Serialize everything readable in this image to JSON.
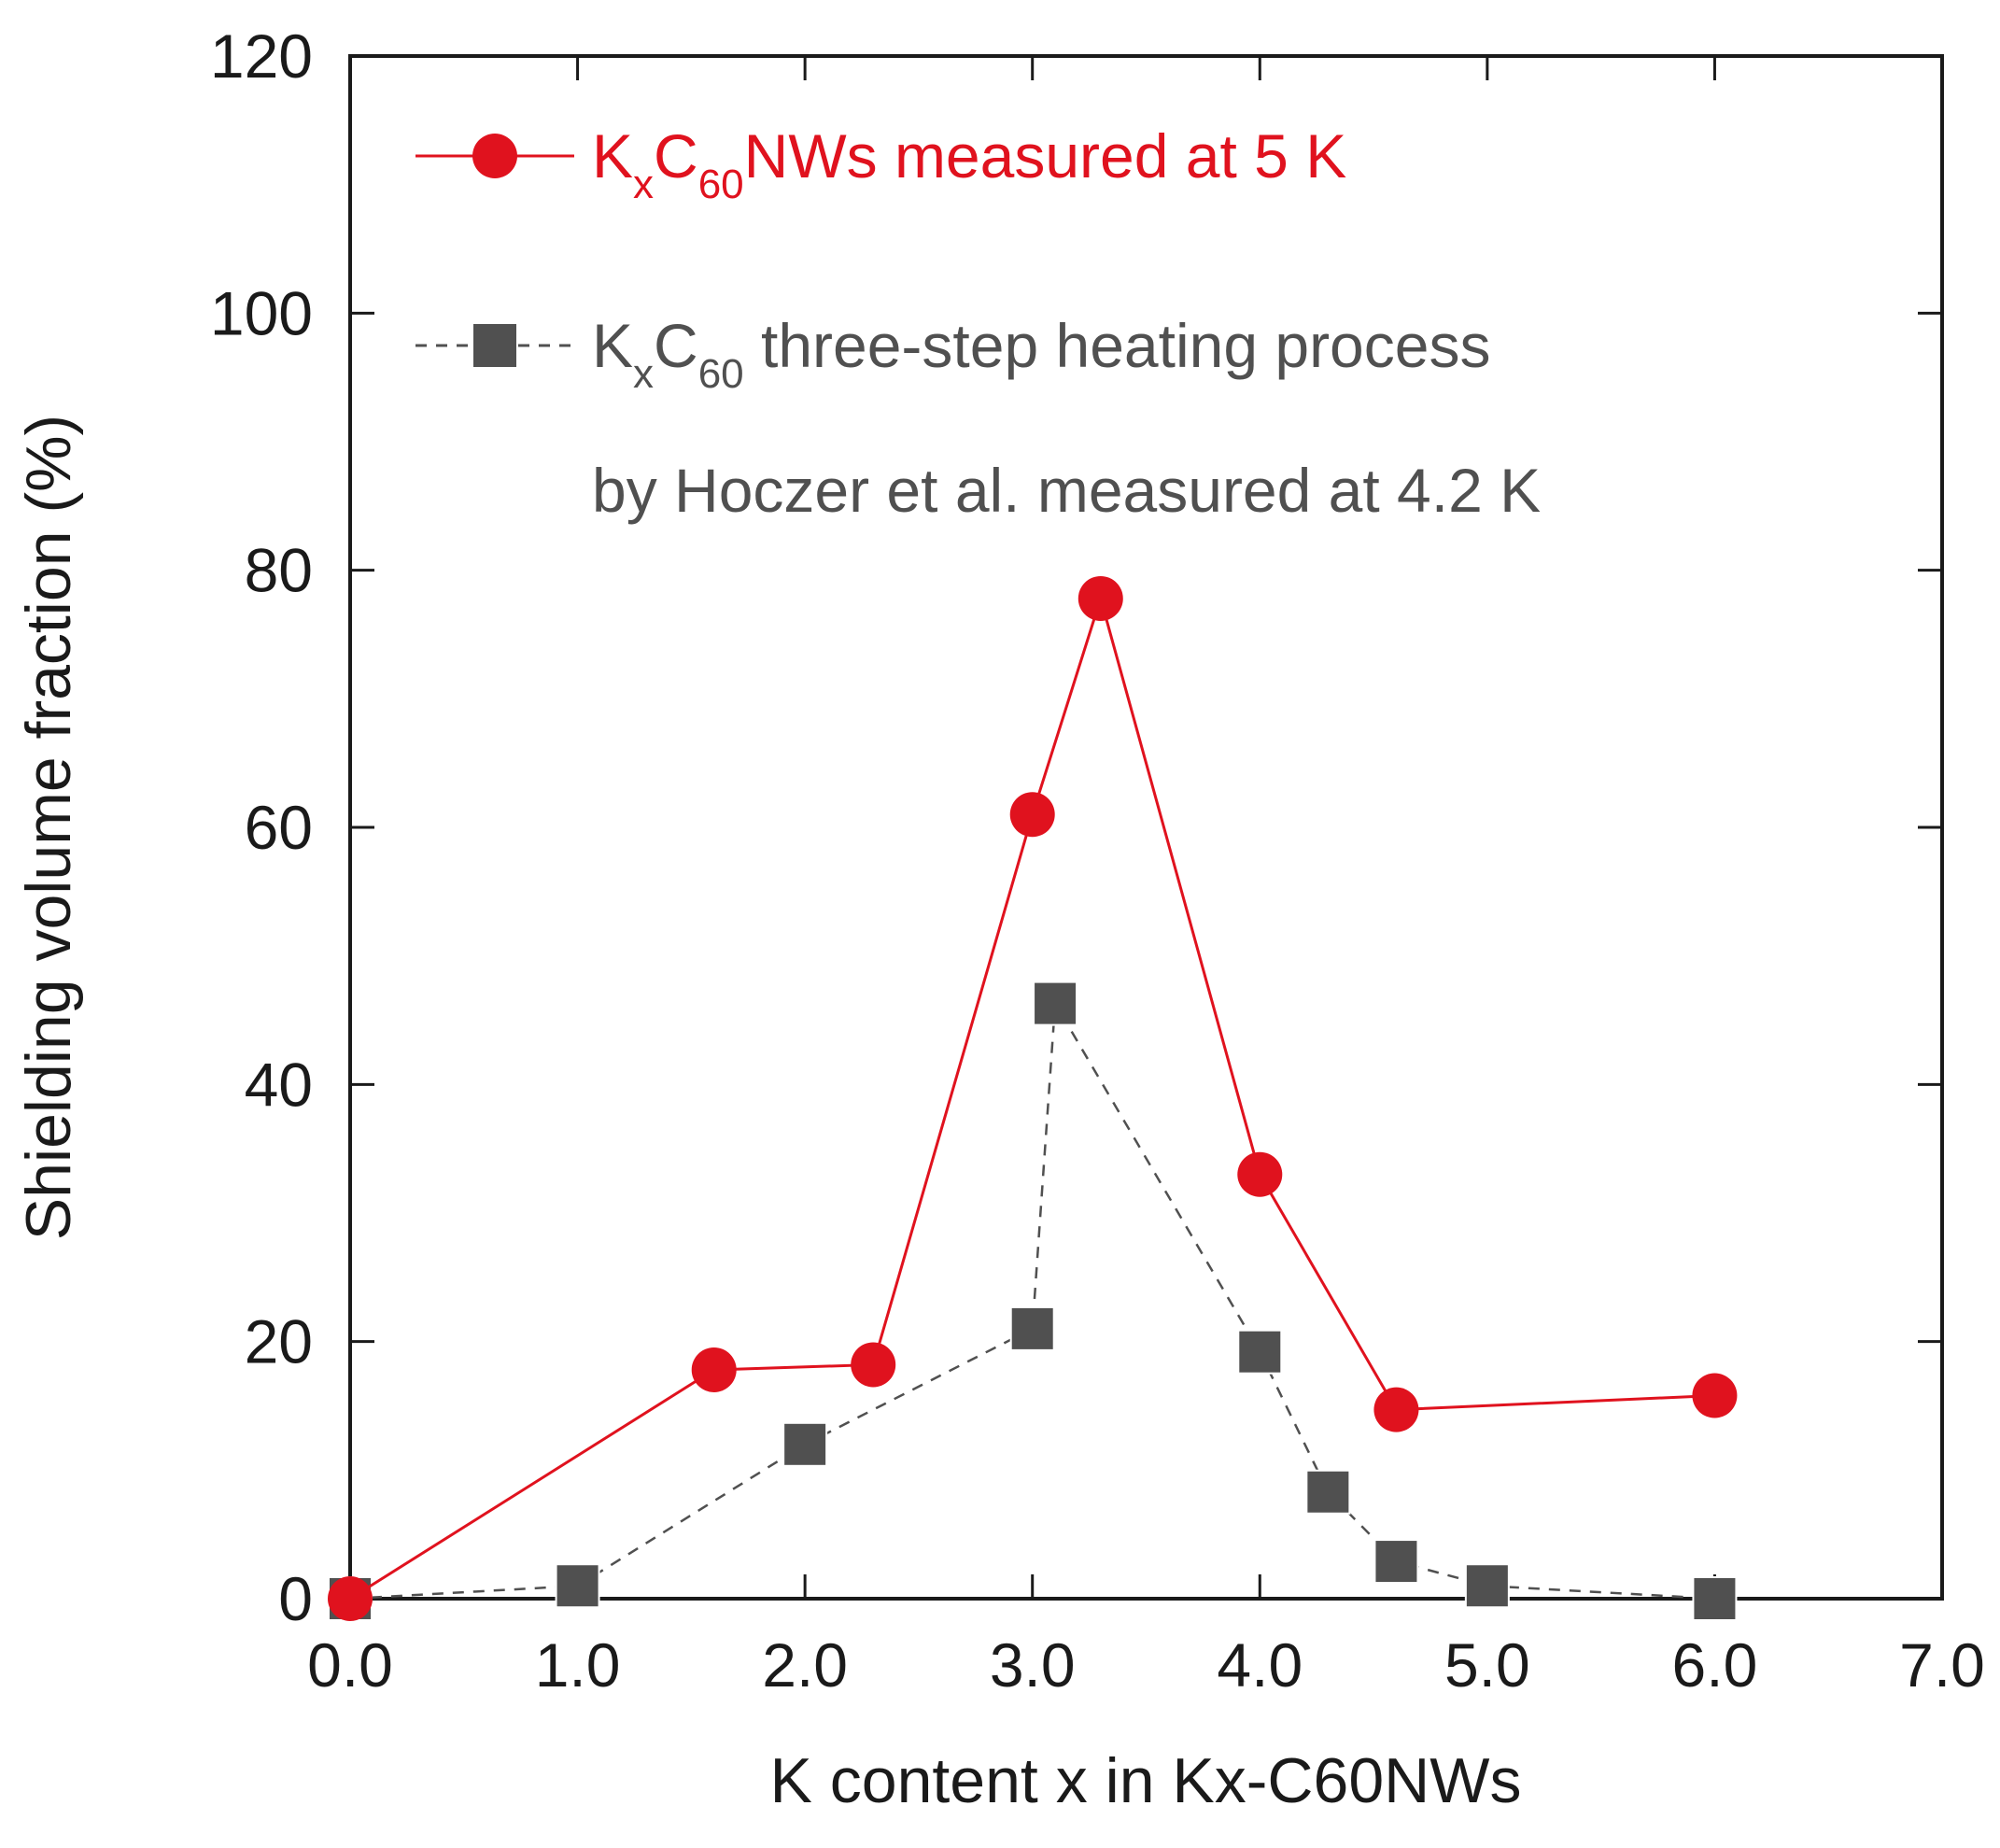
{
  "chart_data": {
    "type": "line",
    "xlabel": "K content x in Kx-C60NWs",
    "ylabel": "Shielding volume fraction (%)",
    "xlim": [
      0,
      7
    ],
    "ylim": [
      0,
      120
    ],
    "xticks": [
      0,
      1,
      2,
      3,
      4,
      5,
      6,
      7
    ],
    "xtick_labels": [
      "0.0",
      "1.0",
      "2.0",
      "3.0",
      "4.0",
      "5.0",
      "6.0",
      "7.0"
    ],
    "yticks": [
      0,
      20,
      40,
      60,
      80,
      100,
      120
    ],
    "ytick_labels": [
      "0",
      "20",
      "40",
      "60",
      "80",
      "100",
      "120"
    ],
    "grid": false,
    "legend_position": "top-left",
    "series": [
      {
        "name": "KxC60NWs measured at 5 K",
        "legend": {
          "k": "K",
          "sub_x": "x",
          "c": "C",
          "sub_60": "60",
          "rest": "NWs measured at 5 K"
        },
        "color": "#e0121e",
        "marker": "circle",
        "line_style": "solid",
        "x": [
          0.0,
          1.6,
          2.3,
          3.0,
          3.3,
          4.0,
          4.6,
          6.0
        ],
        "y": [
          0,
          17.8,
          18.2,
          61.0,
          77.8,
          33.0,
          14.7,
          15.8
        ]
      },
      {
        "name": "KxC60 three-step heating process by Hoczer et al. measured at 4.2 K",
        "legend": {
          "k": "K",
          "sub_x": "x",
          "c": "C",
          "sub_60": "60",
          "rest": " three-step heating process",
          "line2": "by Hoczer et al. measured at 4.2 K"
        },
        "color": "#505050",
        "marker": "square",
        "line_style": "dashed",
        "x": [
          0.0,
          1.0,
          2.0,
          3.0,
          3.1,
          4.0,
          4.3,
          4.6,
          5.0,
          6.0
        ],
        "y": [
          0,
          1.0,
          12.0,
          21.0,
          46.3,
          19.2,
          8.3,
          2.9,
          1.0,
          0
        ]
      }
    ]
  }
}
